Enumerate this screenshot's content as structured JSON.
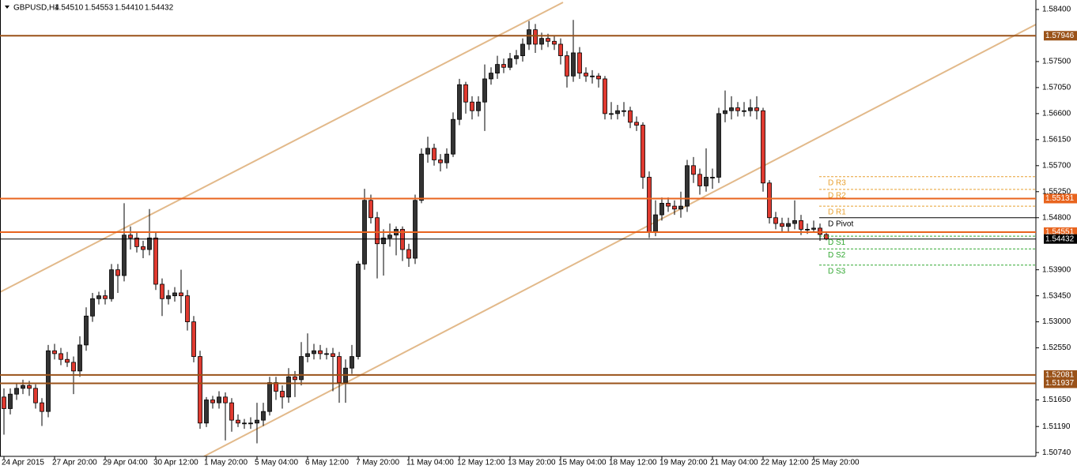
{
  "chart_data": {
    "type": "candlestick",
    "header": {
      "symbol": "GBPUSD,H4",
      "values": [
        "1.54510",
        "1.54553",
        "1.54410",
        "1.54432"
      ]
    },
    "categories": [
      "24 Apr 2015",
      null,
      null,
      null,
      null,
      null,
      null,
      null,
      "27 Apr 20:00",
      null,
      null,
      null,
      null,
      null,
      null,
      null,
      "29 Apr 04:00",
      null,
      null,
      null,
      null,
      null,
      null,
      null,
      "30 Apr 12:00",
      null,
      null,
      null,
      null,
      null,
      null,
      null,
      "1 May 20:00",
      null,
      null,
      null,
      null,
      null,
      null,
      null,
      "5 May 04:00",
      null,
      null,
      null,
      null,
      null,
      null,
      null,
      "6 May 12:00",
      null,
      null,
      null,
      null,
      null,
      null,
      null,
      "7 May 20:00",
      null,
      null,
      null,
      null,
      null,
      null,
      null,
      "11 May 04:00",
      null,
      null,
      null,
      null,
      null,
      null,
      null,
      "12 May 12:00",
      null,
      null,
      null,
      null,
      null,
      null,
      null,
      "13 May 20:00",
      null,
      null,
      null,
      null,
      null,
      null,
      null,
      "15 May 04:00",
      null,
      null,
      null,
      null,
      null,
      null,
      null,
      "18 May 12:00",
      null,
      null,
      null,
      null,
      null,
      null,
      null,
      "19 May 20:00",
      null,
      null,
      null,
      null,
      null,
      null,
      null,
      "21 May 04:00",
      null,
      null,
      null,
      null,
      null,
      null,
      null,
      "22 May 12:00",
      null,
      null,
      null,
      null,
      null,
      null,
      null,
      "25 May 20:00",
      null,
      null
    ],
    "ohlc": [
      [
        1.517,
        1.5185,
        1.5105,
        1.515
      ],
      [
        1.515,
        1.5185,
        1.514,
        1.5175
      ],
      [
        1.5175,
        1.5195,
        1.5165,
        1.5185
      ],
      [
        1.5185,
        1.52,
        1.5175,
        1.519
      ],
      [
        1.519,
        1.5198,
        1.5172,
        1.5185
      ],
      [
        1.5185,
        1.5192,
        1.515,
        1.516
      ],
      [
        1.516,
        1.5168,
        1.512,
        1.5145
      ],
      [
        1.5145,
        1.526,
        1.5135,
        1.525
      ],
      [
        1.525,
        1.5262,
        1.5235,
        1.5245
      ],
      [
        1.5245,
        1.5255,
        1.5225,
        1.5235
      ],
      [
        1.5235,
        1.5248,
        1.5222,
        1.523
      ],
      [
        1.523,
        1.524,
        1.5175,
        1.5215
      ],
      [
        1.5215,
        1.5275,
        1.5205,
        1.526
      ],
      [
        1.526,
        1.5325,
        1.525,
        1.531
      ],
      [
        1.531,
        1.535,
        1.53,
        1.534
      ],
      [
        1.534,
        1.5352,
        1.533,
        1.5345
      ],
      [
        1.5345,
        1.5355,
        1.533,
        1.534
      ],
      [
        1.534,
        1.54,
        1.5335,
        1.539
      ],
      [
        1.539,
        1.54,
        1.535,
        1.538
      ],
      [
        1.538,
        1.5505,
        1.537,
        1.545
      ],
      [
        1.545,
        1.5465,
        1.5425,
        1.5445
      ],
      [
        1.5445,
        1.5455,
        1.542,
        1.543
      ],
      [
        1.543,
        1.544,
        1.541,
        1.5425
      ],
      [
        1.5425,
        1.5495,
        1.5415,
        1.5445
      ],
      [
        1.5445,
        1.5455,
        1.5355,
        1.5365
      ],
      [
        1.5365,
        1.5375,
        1.531,
        1.534
      ],
      [
        1.534,
        1.5355,
        1.533,
        1.5345
      ],
      [
        1.5345,
        1.536,
        1.5335,
        1.535
      ],
      [
        1.535,
        1.539,
        1.5315,
        1.5345
      ],
      [
        1.5345,
        1.5355,
        1.5285,
        1.53
      ],
      [
        1.53,
        1.531,
        1.523,
        1.524
      ],
      [
        1.524,
        1.525,
        1.5115,
        1.5125
      ],
      [
        1.5125,
        1.517,
        1.5118,
        1.5165
      ],
      [
        1.5165,
        1.5172,
        1.515,
        1.516
      ],
      [
        1.516,
        1.518,
        1.515,
        1.517
      ],
      [
        1.517,
        1.5178,
        1.5095,
        1.516
      ],
      [
        1.516,
        1.5168,
        1.511,
        1.513
      ],
      [
        1.513,
        1.514,
        1.5118,
        1.5125
      ],
      [
        1.5125,
        1.5132,
        1.5115,
        1.5125
      ],
      [
        1.5125,
        1.5135,
        1.5115,
        1.5125
      ],
      [
        1.5125,
        1.516,
        1.509,
        1.513
      ],
      [
        1.513,
        1.516,
        1.512,
        1.5145
      ],
      [
        1.5145,
        1.5205,
        1.5138,
        1.5195
      ],
      [
        1.5195,
        1.5205,
        1.5165,
        1.518
      ],
      [
        1.518,
        1.519,
        1.515,
        1.517
      ],
      [
        1.517,
        1.522,
        1.516,
        1.5205
      ],
      [
        1.5205,
        1.5215,
        1.517,
        1.52
      ],
      [
        1.52,
        1.5265,
        1.519,
        1.524
      ],
      [
        1.524,
        1.528,
        1.523,
        1.5245
      ],
      [
        1.5245,
        1.5262,
        1.5235,
        1.525
      ],
      [
        1.525,
        1.526,
        1.5235,
        1.5245
      ],
      [
        1.5245,
        1.5255,
        1.5235,
        1.5245
      ],
      [
        1.5245,
        1.5255,
        1.518,
        1.524
      ],
      [
        1.524,
        1.5248,
        1.516,
        1.5195
      ],
      [
        1.5195,
        1.5235,
        1.516,
        1.522
      ],
      [
        1.522,
        1.526,
        1.521,
        1.524
      ],
      [
        1.524,
        1.5405,
        1.5235,
        1.54
      ],
      [
        1.54,
        1.553,
        1.539,
        1.551
      ],
      [
        1.551,
        1.552,
        1.547,
        1.548
      ],
      [
        1.548,
        1.549,
        1.5375,
        1.5435
      ],
      [
        1.5435,
        1.546,
        1.538,
        1.5445
      ],
      [
        1.5445,
        1.547,
        1.543,
        1.545
      ],
      [
        1.545,
        1.5465,
        1.5415,
        1.546
      ],
      [
        1.546,
        1.5465,
        1.5405,
        1.5425
      ],
      [
        1.5425,
        1.5435,
        1.5395,
        1.541
      ],
      [
        1.541,
        1.552,
        1.54,
        1.551
      ],
      [
        1.551,
        1.56,
        1.5505,
        1.559
      ],
      [
        1.559,
        1.562,
        1.5575,
        1.56
      ],
      [
        1.56,
        1.5608,
        1.557,
        1.558
      ],
      [
        1.558,
        1.559,
        1.556,
        1.5575
      ],
      [
        1.5575,
        1.56,
        1.5565,
        1.559
      ],
      [
        1.559,
        1.5662,
        1.5585,
        1.565
      ],
      [
        1.565,
        1.572,
        1.564,
        1.571
      ],
      [
        1.571,
        1.5715,
        1.566,
        1.568
      ],
      [
        1.568,
        1.569,
        1.565,
        1.5665
      ],
      [
        1.5665,
        1.569,
        1.5655,
        1.568
      ],
      [
        1.568,
        1.5745,
        1.563,
        1.572
      ],
      [
        1.572,
        1.574,
        1.571,
        1.573
      ],
      [
        1.573,
        1.576,
        1.572,
        1.5745
      ],
      [
        1.5745,
        1.5755,
        1.573,
        1.574
      ],
      [
        1.574,
        1.5765,
        1.5735,
        1.5755
      ],
      [
        1.5755,
        1.577,
        1.5745,
        1.576
      ],
      [
        1.576,
        1.579,
        1.575,
        1.578
      ],
      [
        1.578,
        1.582,
        1.577,
        1.5805
      ],
      [
        1.5805,
        1.5815,
        1.5765,
        1.578
      ],
      [
        1.578,
        1.58,
        1.577,
        1.579
      ],
      [
        1.579,
        1.5798,
        1.5775,
        1.5785
      ],
      [
        1.5785,
        1.5795,
        1.577,
        1.578
      ],
      [
        1.578,
        1.579,
        1.5745,
        1.576
      ],
      [
        1.576,
        1.5768,
        1.5705,
        1.5725
      ],
      [
        1.5725,
        1.5822,
        1.5715,
        1.5765
      ],
      [
        1.5765,
        1.5775,
        1.572,
        1.573
      ],
      [
        1.573,
        1.574,
        1.5715,
        1.5725
      ],
      [
        1.5725,
        1.5735,
        1.5712,
        1.5725
      ],
      [
        1.5725,
        1.573,
        1.5705,
        1.572
      ],
      [
        1.572,
        1.5725,
        1.565,
        1.566
      ],
      [
        1.566,
        1.568,
        1.565,
        1.566
      ],
      [
        1.566,
        1.5675,
        1.565,
        1.5665
      ],
      [
        1.5665,
        1.568,
        1.5655,
        1.5665
      ],
      [
        1.5665,
        1.5672,
        1.5635,
        1.5645
      ],
      [
        1.5645,
        1.5655,
        1.563,
        1.564
      ],
      [
        1.564,
        1.5645,
        1.553,
        1.555
      ],
      [
        1.555,
        1.556,
        1.5445,
        1.5455
      ],
      [
        1.5455,
        1.551,
        1.5448,
        1.5485
      ],
      [
        1.5485,
        1.5515,
        1.5475,
        1.5505
      ],
      [
        1.5505,
        1.5515,
        1.549,
        1.55
      ],
      [
        1.55,
        1.551,
        1.5485,
        1.5495
      ],
      [
        1.5495,
        1.5525,
        1.548,
        1.55
      ],
      [
        1.55,
        1.558,
        1.549,
        1.557
      ],
      [
        1.557,
        1.5585,
        1.554,
        1.5555
      ],
      [
        1.5555,
        1.5565,
        1.552,
        1.5535
      ],
      [
        1.5535,
        1.56,
        1.5525,
        1.555
      ],
      [
        1.555,
        1.5565,
        1.553,
        1.555
      ],
      [
        1.555,
        1.567,
        1.554,
        1.566
      ],
      [
        1.566,
        1.57,
        1.5645,
        1.5665
      ],
      [
        1.5665,
        1.569,
        1.565,
        1.567
      ],
      [
        1.567,
        1.568,
        1.5655,
        1.5665
      ],
      [
        1.5665,
        1.568,
        1.5655,
        1.5665
      ],
      [
        1.5665,
        1.5685,
        1.5655,
        1.567
      ],
      [
        1.567,
        1.569,
        1.565,
        1.5665
      ],
      [
        1.5665,
        1.567,
        1.5525,
        1.554
      ],
      [
        1.554,
        1.5545,
        1.547,
        1.548
      ],
      [
        1.548,
        1.549,
        1.546,
        1.547
      ],
      [
        1.547,
        1.548,
        1.5455,
        1.5465
      ],
      [
        1.5465,
        1.548,
        1.5455,
        1.547
      ],
      [
        1.547,
        1.551,
        1.546,
        1.5475
      ],
      [
        1.5475,
        1.5485,
        1.545,
        1.546
      ],
      [
        1.546,
        1.547,
        1.5452,
        1.546
      ],
      [
        1.546,
        1.5475,
        1.5455,
        1.5462
      ],
      [
        1.5462,
        1.547,
        1.544,
        1.5451
      ],
      [
        1.5451,
        1.54553,
        1.5441,
        1.54432
      ]
    ],
    "up_color": "#333333",
    "down_color": "#e03a30",
    "xlim": [
      -0.625,
      163.125
    ],
    "ylim": [
      1.50674,
      1.58564
    ],
    "yticks": [
      {
        "value": 1.584,
        "label": "1.58400"
      },
      {
        "value": 1.575,
        "label": "1.57500"
      },
      {
        "value": 1.5705,
        "label": "1.57050"
      },
      {
        "value": 1.566,
        "label": "1.56600"
      },
      {
        "value": 1.5615,
        "label": "1.56150"
      },
      {
        "value": 1.557,
        "label": "1.55700"
      },
      {
        "value": 1.5525,
        "label": "1.55250"
      },
      {
        "value": 1.548,
        "label": "1.54800"
      },
      {
        "value": 1.539,
        "label": "1.53900"
      },
      {
        "value": 1.5345,
        "label": "1.53450"
      },
      {
        "value": 1.53,
        "label": "1.53000"
      },
      {
        "value": 1.5255,
        "label": "1.52550"
      },
      {
        "value": 1.5165,
        "label": "1.51650"
      },
      {
        "value": 1.5119,
        "label": "1.51190"
      },
      {
        "value": 1.5074,
        "label": "1.50740"
      }
    ],
    "levels": [
      {
        "value": 1.57946,
        "color": "#9a5219"
      },
      {
        "value": 1.55131,
        "color": "#e8641e"
      },
      {
        "value": 1.54551,
        "color": "#e8641e"
      },
      {
        "value": 1.54432,
        "color": "#000000"
      },
      {
        "value": 1.52081,
        "color": "#9a5219"
      },
      {
        "value": 1.51937,
        "color": "#9a5219"
      }
    ],
    "pivots": [
      {
        "name": "D R3",
        "value": 1.5551,
        "color": "#e8a030"
      },
      {
        "name": "D R2",
        "value": 1.5529,
        "color": "#e8a030"
      },
      {
        "name": "D R1",
        "value": 1.55,
        "color": "#e8a030"
      },
      {
        "name": "D Pivot",
        "value": 1.548,
        "color": "#000000"
      },
      {
        "name": "D S1",
        "value": 1.5448,
        "color": "#32a832"
      },
      {
        "name": "D S2",
        "value": 1.5426,
        "color": "#32a832"
      },
      {
        "name": "D S3",
        "value": 1.5398,
        "color": "#32a832"
      }
    ],
    "pivot_start": 128.875,
    "trendlines": [
      {
        "x": [
          -0.625,
          88.375
        ],
        "y": [
          1.53513,
          1.58523
        ],
        "color": "#e2b98a"
      },
      {
        "x": [
          31.625,
          163.125
        ],
        "y": [
          1.50674,
          1.58141
        ],
        "color": "#e2b98a"
      }
    ]
  }
}
